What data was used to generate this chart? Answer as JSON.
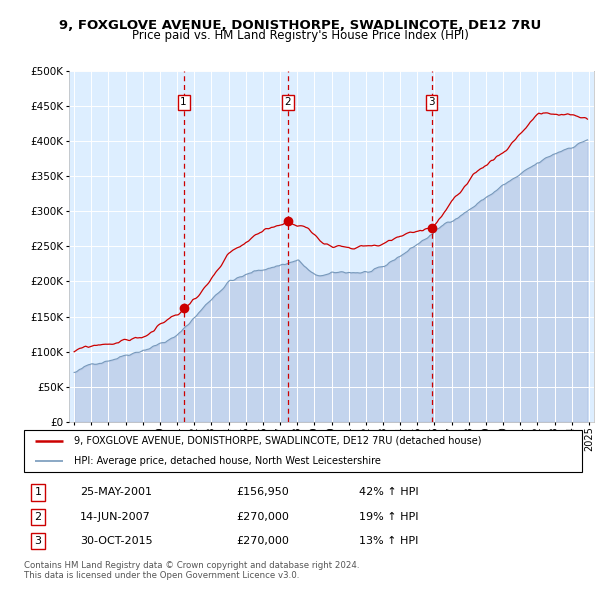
{
  "title1": "9, FOXGLOVE AVENUE, DONISTHORPE, SWADLINCOTE, DE12 7RU",
  "title2": "Price paid vs. HM Land Registry's House Price Index (HPI)",
  "legend_line1": "9, FOXGLOVE AVENUE, DONISTHORPE, SWADLINCOTE, DE12 7RU (detached house)",
  "legend_line2": "HPI: Average price, detached house, North West Leicestershire",
  "footer1": "Contains HM Land Registry data © Crown copyright and database right 2024.",
  "footer2": "This data is licensed under the Open Government Licence v3.0.",
  "sales": [
    {
      "num": 1,
      "date": "25-MAY-2001",
      "price": 156950,
      "hpi_change": "42% ↑ HPI",
      "x": 2001.38
    },
    {
      "num": 2,
      "date": "14-JUN-2007",
      "price": 270000,
      "hpi_change": "19% ↑ HPI",
      "x": 2007.45
    },
    {
      "num": 3,
      "date": "30-OCT-2015",
      "price": 270000,
      "hpi_change": "13% ↑ HPI",
      "x": 2015.83
    }
  ],
  "red_color": "#cc0000",
  "blue_color": "#7799bb",
  "blue_fill": "#aabbdd",
  "bg_color": "#ddeeff",
  "ylim": [
    0,
    500000
  ],
  "yticks": [
    0,
    50000,
    100000,
    150000,
    200000,
    250000,
    300000,
    350000,
    400000,
    450000,
    500000
  ],
  "xlim": [
    1994.7,
    2025.3
  ]
}
